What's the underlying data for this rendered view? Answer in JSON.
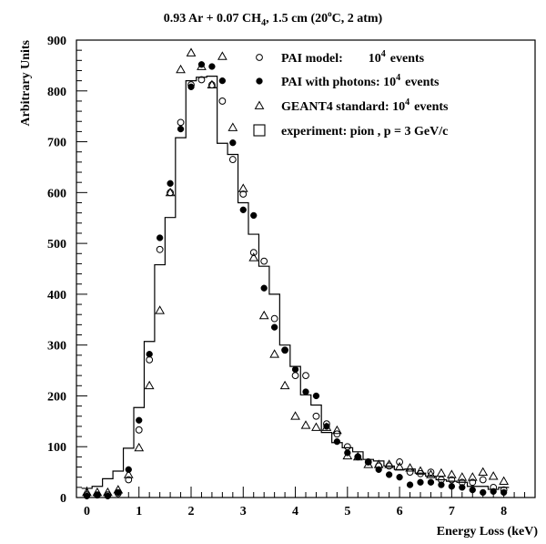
{
  "chart_data": {
    "type": "scatter",
    "title": "0.93 Ar + 0.07 CH",
    "title_sub": "4",
    "title_rest": ", 1.5 cm (20",
    "title_deg": "o",
    "title_end": "C, 2 atm)",
    "xlabel": "Energy Loss (keV)",
    "ylabel": "Arbitrary Units",
    "xlim": [
      -0.2,
      8.6
    ],
    "ylim": [
      0,
      900
    ],
    "x_ticks": [
      "0",
      "1",
      "2",
      "3",
      "4",
      "5",
      "6",
      "7",
      "8"
    ],
    "y_ticks": [
      "0",
      "100",
      "200",
      "300",
      "400",
      "500",
      "600",
      "700",
      "800",
      "900"
    ],
    "legend_position": "top-right",
    "legend": [
      {
        "marker": "open-circle",
        "label": "PAI model:",
        "count": "10",
        "exp": "4",
        "suffix": "events"
      },
      {
        "marker": "filled-circle",
        "label": "PAI with photons: 10",
        "count": "",
        "exp": "4",
        "suffix": "events"
      },
      {
        "marker": "open-triangle",
        "label": "GEANT4 standard: 10",
        "count": "",
        "exp": "4",
        "suffix": "events"
      },
      {
        "marker": "open-square",
        "label": "experiment: pion , p = 3 GeV/c",
        "count": "",
        "exp": "",
        "suffix": ""
      }
    ],
    "x": [
      0,
      0.2,
      0.4,
      0.6,
      0.8,
      1.0,
      1.2,
      1.4,
      1.6,
      1.8,
      2.0,
      2.2,
      2.4,
      2.6,
      2.8,
      3.0,
      3.2,
      3.4,
      3.6,
      3.8,
      4.0,
      4.2,
      4.4,
      4.6,
      4.8,
      5.0,
      5.2,
      5.4,
      5.6,
      5.8,
      6.0,
      6.2,
      6.4,
      6.6,
      6.8,
      7.0,
      7.2,
      7.4,
      7.6,
      7.8,
      8.0
    ],
    "series": [
      {
        "name": "PAI model",
        "marker": "open-circle",
        "values": [
          5,
          5,
          5,
          8,
          35,
          133,
          271,
          488,
          600,
          738,
          812,
          822,
          812,
          780,
          665,
          597,
          482,
          465,
          352,
          290,
          240,
          240,
          160,
          145,
          125,
          100,
          80,
          70,
          62,
          62,
          70,
          50,
          47,
          50,
          35,
          35,
          30,
          30,
          35,
          20,
          15
        ]
      },
      {
        "name": "PAI with photons",
        "marker": "filled-circle",
        "values": [
          3,
          5,
          3,
          10,
          55,
          152,
          282,
          511,
          618,
          725,
          808,
          852,
          848,
          820,
          698,
          566,
          555,
          412,
          335,
          290,
          252,
          208,
          200,
          140,
          110,
          88,
          80,
          70,
          55,
          45,
          40,
          25,
          30,
          30,
          25,
          22,
          20,
          15,
          10,
          12,
          10
        ]
      },
      {
        "name": "GEANT4 standard",
        "marker": "open-triangle",
        "values": [
          10,
          10,
          10,
          15,
          45,
          98,
          220,
          368,
          600,
          842,
          875,
          848,
          812,
          868,
          728,
          608,
          472,
          358,
          282,
          220,
          160,
          142,
          138,
          138,
          132,
          82,
          80,
          65,
          65,
          65,
          60,
          58,
          52,
          45,
          48,
          45,
          40,
          40,
          50,
          42,
          32
        ]
      },
      {
        "name": "experiment: pion , p = 3 GeV/c",
        "marker": "histogram",
        "values": [
          18,
          22,
          37,
          52,
          97,
          177,
          307,
          458,
          551,
          708,
          820,
          827,
          829,
          697,
          675,
          580,
          518,
          455,
          400,
          300,
          258,
          202,
          182,
          128,
          108,
          98,
          90,
          75,
          72,
          62,
          55,
          56,
          48,
          42,
          35,
          32,
          30,
          22,
          22,
          16,
          20
        ]
      }
    ]
  }
}
